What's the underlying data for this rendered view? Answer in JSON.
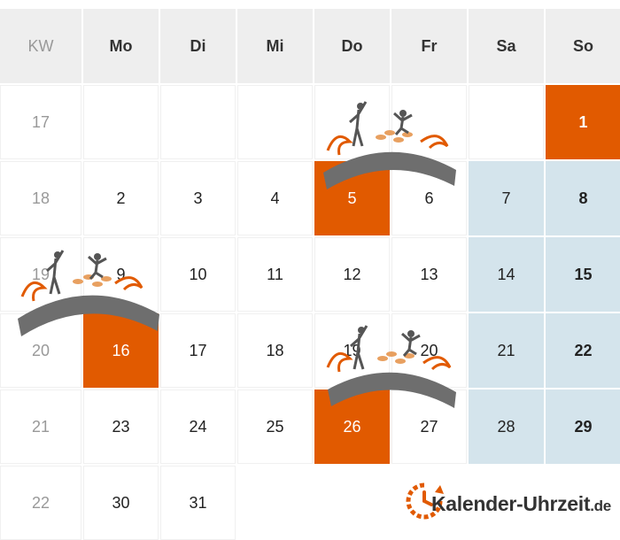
{
  "header": {
    "week_label": "KW",
    "days": [
      "Mo",
      "Di",
      "Mi",
      "Do",
      "Fr",
      "Sa",
      "So"
    ]
  },
  "rows": [
    {
      "week": "17",
      "days": [
        "",
        "",
        "",
        "",
        "",
        "",
        "1"
      ]
    },
    {
      "week": "18",
      "days": [
        "2",
        "3",
        "4",
        "5",
        "6",
        "7",
        "8"
      ]
    },
    {
      "week": "19",
      "days": [
        "9",
        "10",
        "11",
        "12",
        "13",
        "14",
        "15"
      ]
    },
    {
      "week": "20",
      "days": [
        "16",
        "17",
        "18",
        "19",
        "20",
        "21",
        "22"
      ]
    },
    {
      "week": "21",
      "days": [
        "23",
        "24",
        "25",
        "26",
        "27",
        "28",
        "29"
      ]
    },
    {
      "week": "22",
      "days": [
        "30",
        "31",
        "",
        "",
        "",
        "",
        ""
      ]
    }
  ],
  "holidays": [
    "1",
    "5",
    "16",
    "26"
  ],
  "colors": {
    "holiday": "#e15a00",
    "weekend": "#d4e4ec",
    "header": "#eeeeee"
  },
  "logo": {
    "name": "Kalender-Uhrzeit",
    "tld": ".de",
    "icon": "clock-arrow-icon"
  },
  "decorations": [
    "holiday-swoosh-icon",
    "holiday-swoosh-icon",
    "holiday-swoosh-icon"
  ]
}
